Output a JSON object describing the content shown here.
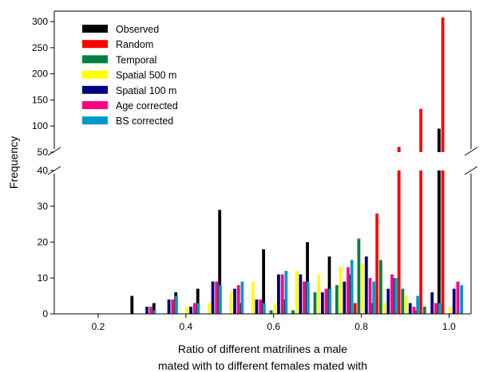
{
  "chart_data": {
    "type": "bar",
    "xlabel_lines": [
      "Ratio of different matrilines a male",
      "mated with to different females mated with"
    ],
    "ylabel": "Frequency",
    "x_ticks": [
      "0.2",
      "0.4",
      "0.6",
      "0.8",
      "1.0"
    ],
    "x_tick_values": [
      0.2,
      0.4,
      0.6,
      0.8,
      1.0
    ],
    "xlim": [
      0.1,
      1.05
    ],
    "y_ticks_lower": [
      "0",
      "10",
      "20",
      "30",
      "40"
    ],
    "y_ticks_upper": [
      "50",
      "100",
      "150",
      "200",
      "250",
      "300"
    ],
    "ylim_lower": [
      0,
      40
    ],
    "ylim_upper": [
      50,
      320
    ],
    "axis_break": "y between 40 and 50",
    "legend_position": "top-left",
    "bins": [
      0.3,
      0.35,
      0.4,
      0.45,
      0.5,
      0.55,
      0.6,
      0.65,
      0.7,
      0.75,
      0.8,
      0.85,
      0.9,
      0.95,
      1.0
    ],
    "series": [
      {
        "name": "Observed",
        "color": "#000000",
        "values": [
          5,
          3,
          6,
          7,
          29,
          3,
          18,
          4,
          20,
          16,
          11,
          3,
          10,
          1,
          95
        ]
      },
      {
        "name": "Random",
        "color": "#ff0000",
        "values": [
          0,
          0,
          0,
          0,
          0,
          0,
          0,
          0,
          0,
          0,
          3,
          28,
          60,
          133,
          308
        ]
      },
      {
        "name": "Temporal",
        "color": "#008040",
        "values": [
          0,
          0,
          0,
          0,
          0,
          0,
          1,
          1,
          6,
          8,
          21,
          15,
          7,
          2,
          0
        ]
      },
      {
        "name": "Spatial 500 m",
        "color": "#ffff00",
        "values": [
          0,
          0,
          2,
          3,
          6,
          9,
          3,
          12,
          11,
          13,
          14,
          3,
          5,
          0,
          2
        ]
      },
      {
        "name": "Spatial 100 m",
        "color": "#000080",
        "values": [
          2,
          4,
          2,
          9,
          7,
          4,
          11,
          11,
          6,
          9,
          16,
          7,
          3,
          6,
          7
        ]
      },
      {
        "name": "Age corrected",
        "color": "#ff0080",
        "values": [
          2,
          4,
          3,
          9,
          8,
          4,
          11,
          9,
          7,
          13,
          10,
          11,
          2,
          3,
          9
        ]
      },
      {
        "name": "BS corrected",
        "color": "#0099cc",
        "values": [
          1,
          5,
          3,
          8,
          9,
          3,
          12,
          9,
          7,
          15,
          9,
          10,
          5,
          3,
          8
        ]
      }
    ]
  }
}
